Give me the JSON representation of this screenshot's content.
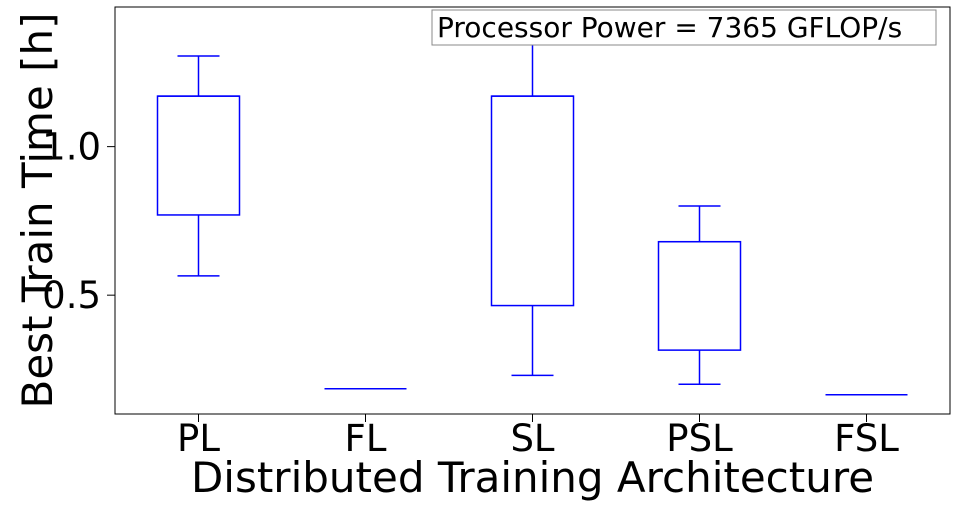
{
  "chart_data": {
    "type": "box",
    "title": "",
    "annotation": "Processor Power = 7365 GFLOP/s",
    "xlabel": "Distributed Training Architecture",
    "ylabel": "Best Train Time [h]",
    "ylim": [
      0.1,
      1.47
    ],
    "yticks": [
      {
        "value": 0.5,
        "label": "0.5"
      },
      {
        "value": 1.0,
        "label": "1.0"
      }
    ],
    "categories": [
      "PL",
      "FL",
      "SL",
      "PSL",
      "FSL"
    ],
    "boxes": [
      {
        "category": "PL",
        "whisker_low": 0.565,
        "q1": 0.77,
        "median": 1.17,
        "q3": 1.17,
        "whisker_high": 1.305
      },
      {
        "category": "FL",
        "whisker_low": 0.185,
        "q1": 0.185,
        "median": 0.185,
        "q3": 0.185,
        "whisker_high": 0.185
      },
      {
        "category": "SL",
        "whisker_low": 0.23,
        "q1": 0.465,
        "median": 1.17,
        "q3": 1.17,
        "whisker_high": 1.41
      },
      {
        "category": "PSL",
        "whisker_low": 0.2,
        "q1": 0.315,
        "median": 0.68,
        "q3": 0.68,
        "whisker_high": 0.8
      },
      {
        "category": "FSL",
        "whisker_low": 0.165,
        "q1": 0.165,
        "median": 0.165,
        "q3": 0.165,
        "whisker_high": 0.165
      }
    ],
    "box_color": "#0000ff",
    "grid": false,
    "legend": "none"
  }
}
